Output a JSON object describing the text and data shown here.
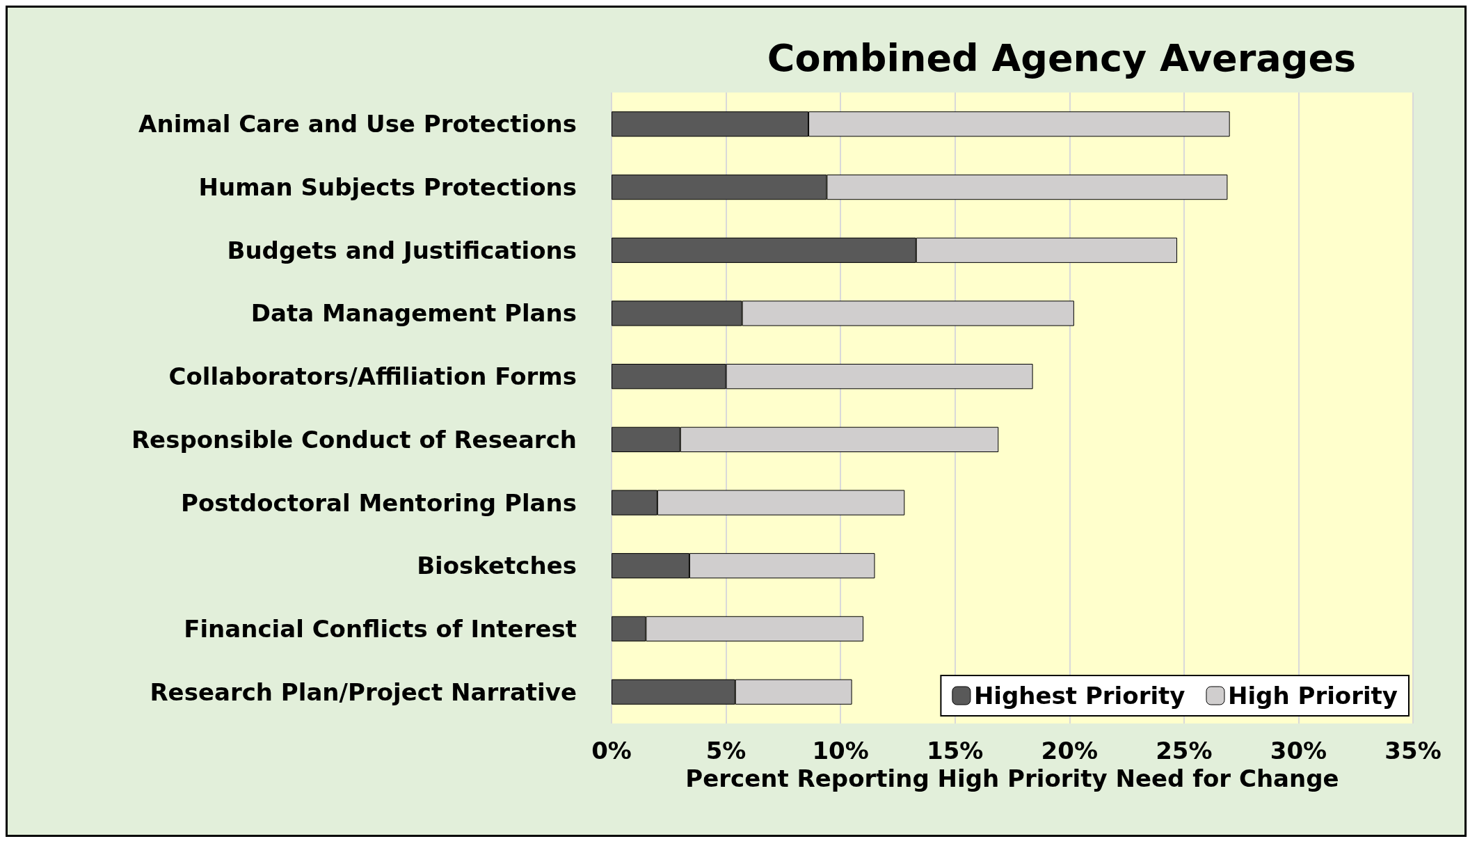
{
  "chart_data": {
    "type": "bar",
    "title": "Combined Agency Averages",
    "xlabel": "Percent Reporting High Priority Need for Change",
    "orientation": "horizontal",
    "stacked": true,
    "categories": [
      "Animal Care and Use Protections",
      "Human Subjects Protections",
      "Budgets and Justifications",
      "Data Management Plans",
      "Collaborators/Affiliation Forms",
      "Responsible Conduct of Research",
      "Postdoctoral Mentoring Plans",
      "Biosketches",
      "Financial Conflicts of Interest",
      "Research Plan/Project Narrative"
    ],
    "series": [
      {
        "name": "Highest Priority",
        "color": "#595959",
        "values": [
          8.6,
          9.4,
          13.3,
          5.7,
          5.0,
          3.0,
          2.0,
          3.4,
          1.5,
          5.4
        ]
      },
      {
        "name": "High Priority",
        "color": "#d0cece",
        "values": [
          18.4,
          17.5,
          11.4,
          14.5,
          13.4,
          13.9,
          10.8,
          8.1,
          9.5,
          5.1
        ]
      }
    ],
    "xlim": [
      0,
      35
    ],
    "xticks": [
      {
        "value": 0,
        "label": "0%"
      },
      {
        "value": 5,
        "label": "5%"
      },
      {
        "value": 10,
        "label": "10%"
      },
      {
        "value": 15,
        "label": "15%"
      },
      {
        "value": 20,
        "label": "20%"
      },
      {
        "value": 25,
        "label": "25%"
      },
      {
        "value": 30,
        "label": "30%"
      },
      {
        "value": 35,
        "label": "35%"
      }
    ],
    "grid": "x",
    "legend": "bottom right"
  }
}
